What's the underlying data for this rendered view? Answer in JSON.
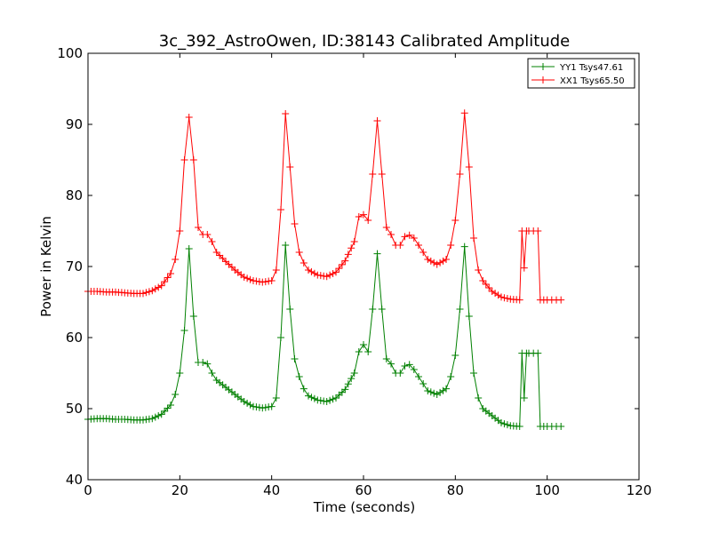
{
  "chart_data": {
    "type": "line",
    "title": "3c_392_AstroOwen, ID:38143 Calibrated Amplitude",
    "xlabel": "Time (seconds)",
    "ylabel": "Power in Kelvin",
    "xlim": [
      0,
      120
    ],
    "ylim": [
      40,
      100
    ],
    "xticks": [
      0,
      20,
      40,
      60,
      80,
      100,
      120
    ],
    "yticks": [
      40,
      50,
      60,
      70,
      80,
      90,
      100
    ],
    "xtick_labels": [
      "0",
      "20",
      "40",
      "60",
      "80",
      "100",
      "120"
    ],
    "ytick_labels": [
      "40",
      "50",
      "60",
      "70",
      "80",
      "90",
      "100"
    ],
    "grid": false,
    "legend_position": "top-right",
    "marker": "+",
    "series": [
      {
        "name": "YY1 Tsys47.61",
        "color": "#008000",
        "points": [
          [
            0,
            48.5
          ],
          [
            2,
            48.6
          ],
          [
            4,
            48.6
          ],
          [
            6,
            48.5
          ],
          [
            8,
            48.5
          ],
          [
            10,
            48.4
          ],
          [
            12,
            48.4
          ],
          [
            14,
            48.6
          ],
          [
            16,
            49.2
          ],
          [
            18,
            50.5
          ],
          [
            19,
            52.0
          ],
          [
            20,
            55.0
          ],
          [
            21,
            61.0
          ],
          [
            22,
            72.5
          ],
          [
            23,
            63.0
          ],
          [
            24,
            56.5
          ],
          [
            25,
            56.5
          ],
          [
            26,
            56.3
          ],
          [
            27,
            55.0
          ],
          [
            28,
            54.0
          ],
          [
            30,
            53.0
          ],
          [
            32,
            52.0
          ],
          [
            34,
            51.0
          ],
          [
            36,
            50.3
          ],
          [
            38,
            50.1
          ],
          [
            40,
            50.3
          ],
          [
            41,
            51.5
          ],
          [
            42,
            60.0
          ],
          [
            43,
            73.0
          ],
          [
            44,
            64.0
          ],
          [
            45,
            57.0
          ],
          [
            46,
            54.5
          ],
          [
            47,
            52.8
          ],
          [
            48,
            51.8
          ],
          [
            50,
            51.2
          ],
          [
            52,
            51.0
          ],
          [
            54,
            51.5
          ],
          [
            56,
            52.7
          ],
          [
            58,
            55.0
          ],
          [
            59,
            58.0
          ],
          [
            60,
            59.0
          ],
          [
            61,
            58.0
          ],
          [
            62,
            64.0
          ],
          [
            63,
            71.8
          ],
          [
            64,
            64.0
          ],
          [
            65,
            57.0
          ],
          [
            66,
            56.3
          ],
          [
            67,
            55.0
          ],
          [
            68,
            55.0
          ],
          [
            69,
            56.0
          ],
          [
            70,
            56.2
          ],
          [
            71,
            55.5
          ],
          [
            72,
            54.5
          ],
          [
            73,
            53.5
          ],
          [
            74,
            52.5
          ],
          [
            76,
            52.0
          ],
          [
            78,
            52.8
          ],
          [
            79,
            54.5
          ],
          [
            80,
            57.5
          ],
          [
            81,
            64.0
          ],
          [
            82,
            72.8
          ],
          [
            83,
            63.0
          ],
          [
            84,
            55.0
          ],
          [
            85,
            51.5
          ],
          [
            86,
            50.0
          ],
          [
            88,
            49.0
          ],
          [
            90,
            48.0
          ],
          [
            92,
            47.6
          ],
          [
            94,
            47.5
          ],
          [
            94.5,
            57.8
          ],
          [
            95,
            51.5
          ],
          [
            95.5,
            57.8
          ],
          [
            96,
            57.8
          ],
          [
            97,
            57.8
          ],
          [
            98,
            57.8
          ],
          [
            98.5,
            47.5
          ],
          [
            100,
            47.5
          ],
          [
            101,
            47.5
          ],
          [
            102,
            47.5
          ],
          [
            103,
            47.5
          ]
        ]
      },
      {
        "name": "XX1 Tsys65.50",
        "color": "#ff0000",
        "points": [
          [
            0,
            66.5
          ],
          [
            2,
            66.5
          ],
          [
            4,
            66.4
          ],
          [
            6,
            66.4
          ],
          [
            8,
            66.3
          ],
          [
            10,
            66.2
          ],
          [
            12,
            66.2
          ],
          [
            14,
            66.6
          ],
          [
            16,
            67.3
          ],
          [
            18,
            69.0
          ],
          [
            19,
            71.0
          ],
          [
            20,
            75.0
          ],
          [
            21,
            85.0
          ],
          [
            22,
            91.0
          ],
          [
            23,
            85.0
          ],
          [
            24,
            75.5
          ],
          [
            25,
            74.5
          ],
          [
            26,
            74.5
          ],
          [
            27,
            73.5
          ],
          [
            28,
            72.0
          ],
          [
            30,
            70.7
          ],
          [
            32,
            69.5
          ],
          [
            34,
            68.5
          ],
          [
            36,
            68.0
          ],
          [
            38,
            67.8
          ],
          [
            40,
            68.0
          ],
          [
            41,
            69.5
          ],
          [
            42,
            78.0
          ],
          [
            43,
            91.5
          ],
          [
            44,
            84.0
          ],
          [
            45,
            76.0
          ],
          [
            46,
            72.0
          ],
          [
            47,
            70.5
          ],
          [
            48,
            69.5
          ],
          [
            50,
            68.8
          ],
          [
            52,
            68.6
          ],
          [
            54,
            69.2
          ],
          [
            56,
            70.8
          ],
          [
            58,
            73.5
          ],
          [
            59,
            77.0
          ],
          [
            60,
            77.3
          ],
          [
            61,
            76.5
          ],
          [
            62,
            83.0
          ],
          [
            63,
            90.5
          ],
          [
            64,
            83.0
          ],
          [
            65,
            75.5
          ],
          [
            66,
            74.5
          ],
          [
            67,
            73.0
          ],
          [
            68,
            73.0
          ],
          [
            69,
            74.2
          ],
          [
            70,
            74.4
          ],
          [
            71,
            74.0
          ],
          [
            72,
            73.0
          ],
          [
            73,
            72.0
          ],
          [
            74,
            71.0
          ],
          [
            76,
            70.3
          ],
          [
            78,
            71.0
          ],
          [
            79,
            73.0
          ],
          [
            80,
            76.5
          ],
          [
            81,
            83.0
          ],
          [
            82,
            91.6
          ],
          [
            83,
            84.0
          ],
          [
            84,
            74.0
          ],
          [
            85,
            69.5
          ],
          [
            86,
            68.0
          ],
          [
            88,
            66.5
          ],
          [
            90,
            65.7
          ],
          [
            92,
            65.4
          ],
          [
            94,
            65.3
          ],
          [
            94.5,
            75.0
          ],
          [
            95,
            69.8
          ],
          [
            95.5,
            75.0
          ],
          [
            96,
            75.0
          ],
          [
            97,
            75.0
          ],
          [
            98,
            75.0
          ],
          [
            98.5,
            65.3
          ],
          [
            100,
            65.3
          ],
          [
            101,
            65.3
          ],
          [
            102,
            65.3
          ],
          [
            103,
            65.3
          ]
        ]
      }
    ]
  }
}
